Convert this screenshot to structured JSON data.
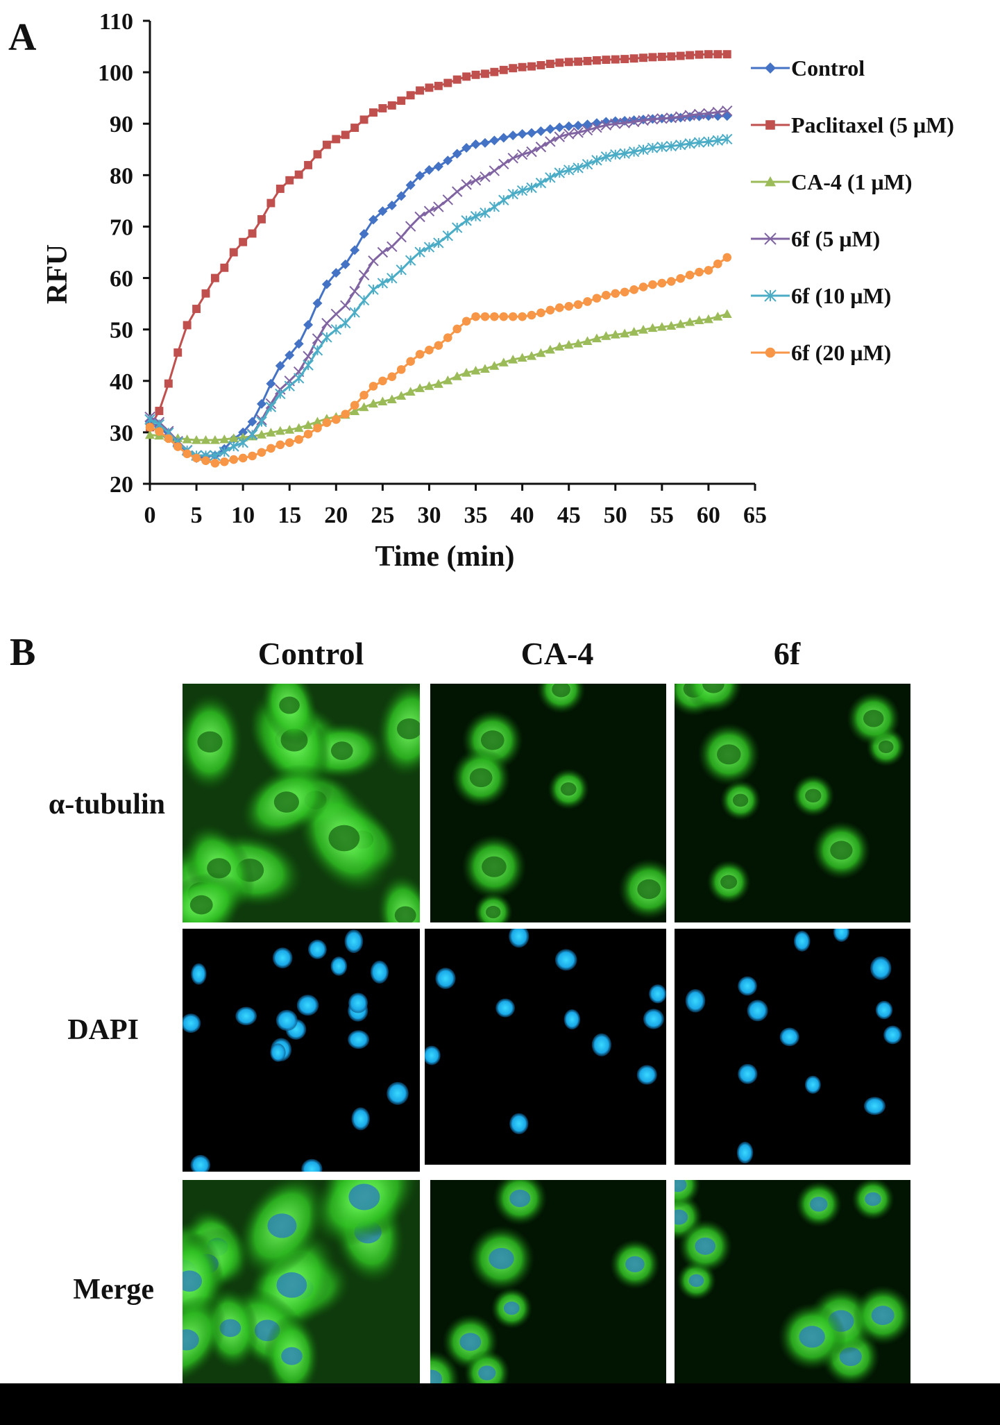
{
  "panel_a": {
    "letter": "A"
  },
  "panel_b": {
    "letter": "B",
    "columns": [
      "Control",
      "CA-4",
      "6f"
    ],
    "rows": [
      "α-tubulin",
      "DAPI",
      "Merge"
    ]
  },
  "chart_data": {
    "type": "line",
    "xlabel": "Time (min)",
    "ylabel": "RFU",
    "xlim": [
      0,
      65
    ],
    "ylim": [
      20,
      110
    ],
    "xticks": [
      0,
      5,
      10,
      15,
      20,
      25,
      30,
      35,
      40,
      45,
      50,
      55,
      60,
      65
    ],
    "yticks": [
      20,
      30,
      40,
      50,
      60,
      70,
      80,
      90,
      100,
      110
    ],
    "grid": false,
    "legend_position": "right",
    "x": [
      0,
      5,
      7,
      10,
      15,
      20,
      25,
      30,
      35,
      40,
      45,
      50,
      55,
      60,
      62
    ],
    "series": [
      {
        "name": "Control",
        "color": "#4472c4",
        "marker": "diamond",
        "values": [
          32,
          25,
          25.5,
          30,
          45,
          61,
          73,
          81,
          86,
          88,
          89.5,
          90.5,
          91,
          91.5,
          91.5
        ]
      },
      {
        "name": "Paclitaxel  (5 μM)",
        "color": "#c0504d",
        "marker": "square",
        "values": [
          31,
          54,
          60,
          67,
          79,
          87,
          93,
          97,
          99.5,
          101,
          102,
          102.5,
          103,
          103.5,
          103.5
        ]
      },
      {
        "name": "CA-4 (1 μM)",
        "color": "#9bbb59",
        "marker": "triangle",
        "values": [
          29.5,
          28.5,
          28.5,
          29,
          30.5,
          33,
          36,
          39,
          42,
          44.5,
          47,
          49,
          50.5,
          52,
          53
        ]
      },
      {
        "name": "6f (5 μM)",
        "color": "#8064a2",
        "marker": "x",
        "values": [
          33,
          25.5,
          25.5,
          28,
          40,
          53,
          65,
          73,
          79,
          84,
          88,
          90,
          91,
          92,
          92.5
        ]
      },
      {
        "name": "6f (10 μM)",
        "color": "#4bacc6",
        "marker": "star",
        "values": [
          32.5,
          25.5,
          25.5,
          28,
          39,
          50,
          59,
          66,
          72,
          77,
          81,
          84,
          85.5,
          86.5,
          87
        ]
      },
      {
        "name": "6f (20 μM)",
        "color": "#f79646",
        "marker": "circle",
        "values": [
          31,
          25,
          24,
          25,
          28,
          32.5,
          40,
          46,
          52.5,
          52.5,
          54.5,
          57,
          59,
          61.5,
          64
        ]
      }
    ]
  }
}
